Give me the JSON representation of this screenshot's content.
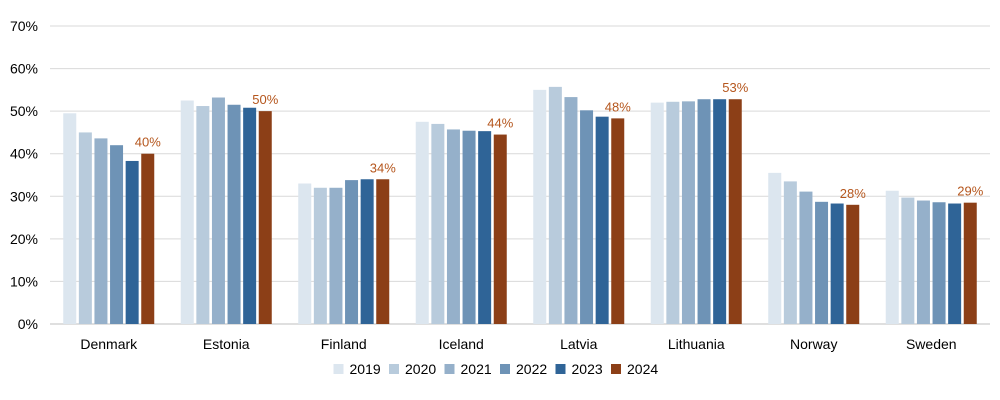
{
  "chart_data": {
    "type": "bar",
    "title": "",
    "xlabel": "",
    "ylabel": "",
    "ylim": [
      0,
      70
    ],
    "yticks": [
      0,
      10,
      20,
      30,
      40,
      50,
      60,
      70
    ],
    "ytick_format": "{v}%",
    "grid": true,
    "legend_position": "bottom",
    "categories": [
      "Denmark",
      "Estonia",
      "Finland",
      "Iceland",
      "Latvia",
      "Lithuania",
      "Norway",
      "Sweden"
    ],
    "series": [
      {
        "name": "2019",
        "color": "#dce6ef",
        "values": [
          49.5,
          52.5,
          33.0,
          47.5,
          55.0,
          52.0,
          35.5,
          31.3
        ]
      },
      {
        "name": "2020",
        "color": "#b8cbdc",
        "values": [
          45.0,
          51.2,
          32.0,
          47.0,
          55.7,
          52.2,
          33.5,
          29.7
        ]
      },
      {
        "name": "2021",
        "color": "#95b0ca",
        "values": [
          43.6,
          53.2,
          32.0,
          45.7,
          53.3,
          52.3,
          31.1,
          29.0
        ]
      },
      {
        "name": "2022",
        "color": "#6e93b6",
        "values": [
          42.0,
          51.5,
          33.8,
          45.4,
          50.2,
          52.8,
          28.7,
          28.6
        ]
      },
      {
        "name": "2023",
        "color": "#2f6497",
        "values": [
          38.3,
          50.8,
          34.0,
          45.3,
          48.7,
          52.8,
          28.3,
          28.3
        ]
      },
      {
        "name": "2024",
        "color": "#8c3f17",
        "values": [
          40.0,
          50.0,
          34.0,
          44.5,
          48.3,
          52.8,
          28.0,
          28.5
        ]
      }
    ],
    "data_labels": {
      "series": "2024",
      "color": "#b5561d",
      "labels": [
        "40%",
        "50%",
        "34%",
        "44%",
        "48%",
        "53%",
        "28%",
        "29%"
      ]
    }
  }
}
